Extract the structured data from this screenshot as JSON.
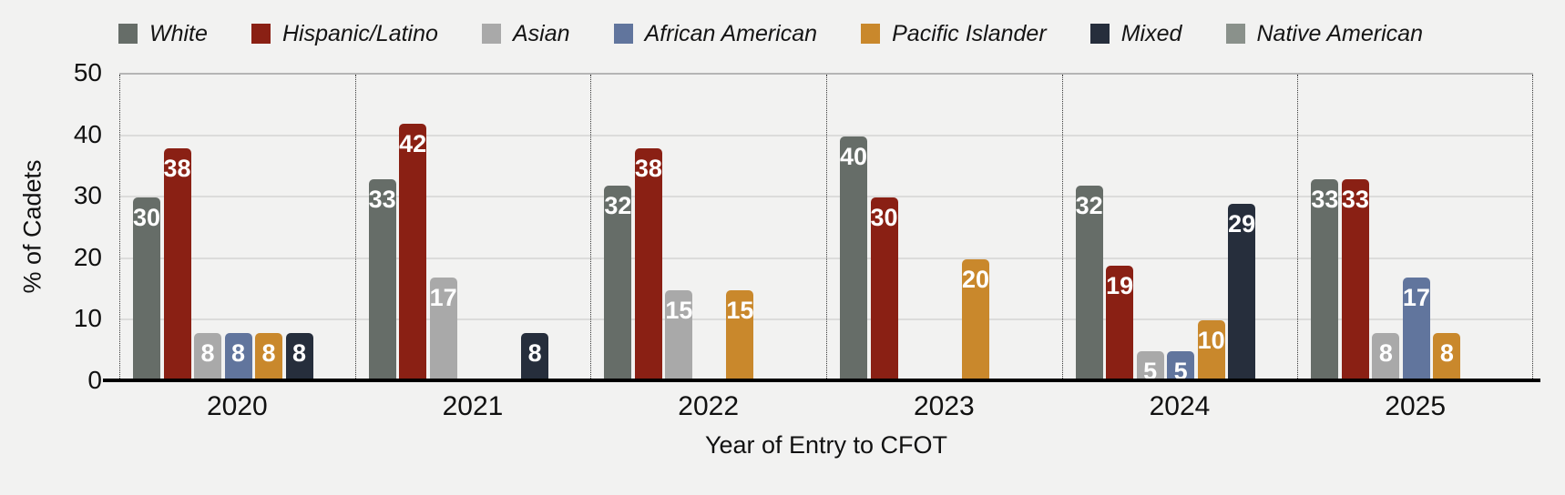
{
  "background": "#f2f2f1",
  "axis": {
    "x_title": "Year of Entry to CFOT",
    "y_title": "% of Cadets",
    "y_ticks": [
      "0",
      "10",
      "20",
      "30",
      "40",
      "50"
    ]
  },
  "chart_data": {
    "type": "bar",
    "title": "",
    "xlabel": "Year of Entry to CFOT",
    "ylabel": "% of Cadets",
    "ylim": [
      0,
      50
    ],
    "ytick_step": 10,
    "grid": "horizontal",
    "legend_position": "top",
    "bar_value_labels": true,
    "categories": [
      "2020",
      "2021",
      "2022",
      "2023",
      "2024",
      "2025"
    ],
    "series": [
      {
        "name": "White",
        "color": "#666d68",
        "values": [
          30,
          33,
          32,
          40,
          32,
          33
        ]
      },
      {
        "name": "Hispanic/Latino",
        "color": "#8a2014",
        "values": [
          38,
          42,
          38,
          30,
          19,
          33
        ]
      },
      {
        "name": "Asian",
        "color": "#a9a9a9",
        "values": [
          8,
          17,
          15,
          null,
          5,
          8
        ]
      },
      {
        "name": "African American",
        "color": "#61759d",
        "values": [
          8,
          null,
          null,
          null,
          5,
          17
        ]
      },
      {
        "name": "Pacific Islander",
        "color": "#c9882c",
        "values": [
          8,
          null,
          15,
          20,
          10,
          8
        ]
      },
      {
        "name": "Mixed",
        "color": "#262e3c",
        "values": [
          8,
          8,
          null,
          null,
          29,
          null
        ]
      },
      {
        "name": "Native American",
        "color": "#8a918b",
        "values": [
          null,
          null,
          null,
          null,
          null,
          null
        ]
      }
    ]
  }
}
